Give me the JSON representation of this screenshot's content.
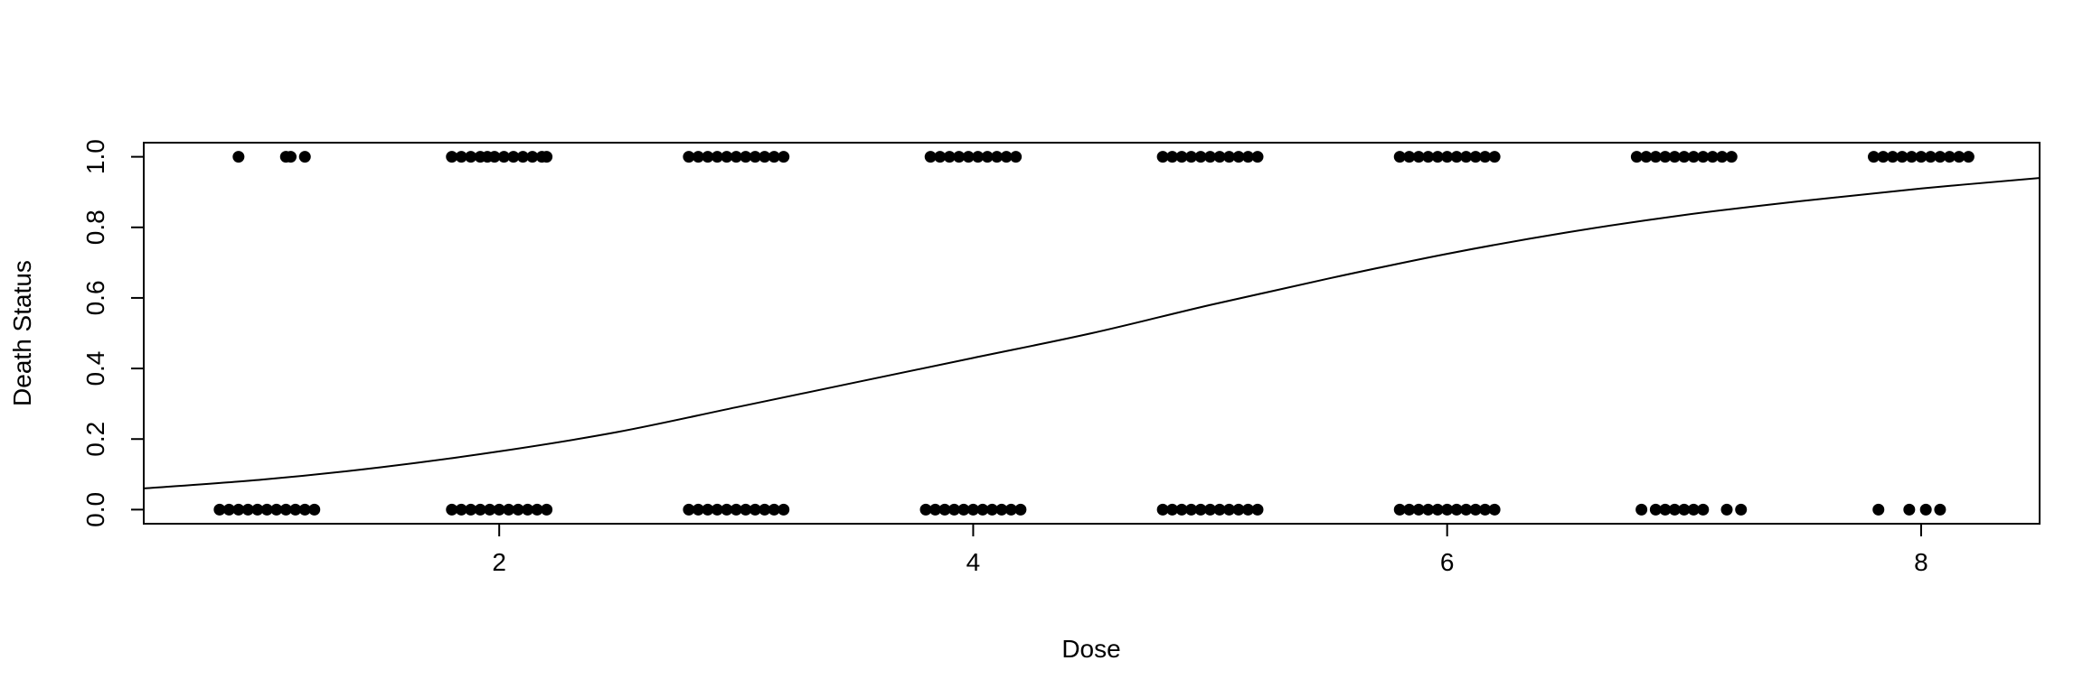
{
  "chart_data": {
    "type": "scatter",
    "title": "",
    "xlabel": "Dose",
    "ylabel": "Death Status",
    "xlim": [
      0.5,
      8.5
    ],
    "ylim": [
      -0.04,
      1.04
    ],
    "x_ticks": [
      2,
      4,
      6,
      8
    ],
    "y_ticks": [
      0.0,
      0.2,
      0.4,
      0.6,
      0.8,
      1.0
    ],
    "x_tick_labels": [
      "2",
      "4",
      "6",
      "8"
    ],
    "y_tick_labels": [
      "0.0",
      "0.2",
      "0.4",
      "0.6",
      "0.8",
      "1.0"
    ],
    "grid": false,
    "series": [
      {
        "type": "scatter",
        "color": "#000000",
        "x": [
          0.9,
          1.1,
          1.12,
          1.18,
          1.8,
          1.84,
          1.88,
          1.92,
          1.95,
          1.98,
          2.02,
          2.06,
          2.1,
          2.14,
          2.18,
          2.2,
          2.8,
          2.84,
          2.88,
          2.92,
          2.96,
          3.0,
          3.04,
          3.08,
          3.12,
          3.16,
          3.2,
          3.82,
          3.86,
          3.9,
          3.94,
          3.98,
          4.02,
          4.06,
          4.1,
          4.14,
          4.18,
          4.8,
          4.84,
          4.88,
          4.92,
          4.96,
          5.0,
          5.04,
          5.08,
          5.12,
          5.16,
          5.2,
          5.8,
          5.84,
          5.88,
          5.92,
          5.96,
          6.0,
          6.04,
          6.08,
          6.12,
          6.16,
          6.2,
          6.8,
          6.84,
          6.88,
          6.92,
          6.96,
          7.0,
          7.04,
          7.08,
          7.12,
          7.16,
          7.2,
          7.8,
          7.84,
          7.88,
          7.92,
          7.96,
          8.0,
          8.04,
          8.08,
          8.12,
          8.16,
          8.2,
          0.82,
          0.86,
          0.9,
          0.94,
          0.98,
          1.02,
          1.06,
          1.1,
          1.14,
          1.18,
          1.22,
          1.8,
          1.84,
          1.88,
          1.92,
          1.96,
          2.0,
          2.04,
          2.08,
          2.12,
          2.16,
          2.2,
          2.8,
          2.84,
          2.88,
          2.92,
          2.96,
          3.0,
          3.04,
          3.08,
          3.12,
          3.16,
          3.2,
          3.8,
          3.84,
          3.88,
          3.92,
          3.96,
          4.0,
          4.04,
          4.08,
          4.12,
          4.16,
          4.2,
          4.8,
          4.84,
          4.88,
          4.92,
          4.96,
          5.0,
          5.04,
          5.08,
          5.12,
          5.16,
          5.2,
          5.8,
          5.84,
          5.88,
          5.92,
          5.96,
          6.0,
          6.04,
          6.08,
          6.12,
          6.16,
          6.2,
          6.82,
          6.88,
          6.92,
          6.96,
          7.0,
          7.04,
          7.08,
          7.18,
          7.24,
          7.82,
          7.95,
          8.02,
          8.08
        ],
        "y": [
          1,
          1,
          1,
          1,
          1,
          1,
          1,
          1,
          1,
          1,
          1,
          1,
          1,
          1,
          1,
          1,
          1,
          1,
          1,
          1,
          1,
          1,
          1,
          1,
          1,
          1,
          1,
          1,
          1,
          1,
          1,
          1,
          1,
          1,
          1,
          1,
          1,
          1,
          1,
          1,
          1,
          1,
          1,
          1,
          1,
          1,
          1,
          1,
          1,
          1,
          1,
          1,
          1,
          1,
          1,
          1,
          1,
          1,
          1,
          1,
          1,
          1,
          1,
          1,
          1,
          1,
          1,
          1,
          1,
          1,
          1,
          1,
          1,
          1,
          1,
          1,
          1,
          1,
          1,
          1,
          1,
          0,
          0,
          0,
          0,
          0,
          0,
          0,
          0,
          0,
          0,
          0,
          0,
          0,
          0,
          0,
          0,
          0,
          0,
          0,
          0,
          0,
          0,
          0,
          0,
          0,
          0,
          0,
          0,
          0,
          0,
          0,
          0,
          0,
          0,
          0,
          0,
          0,
          0,
          0,
          0,
          0,
          0,
          0,
          0,
          0,
          0,
          0,
          0,
          0,
          0,
          0,
          0,
          0,
          0,
          0,
          0,
          0,
          0,
          0,
          0,
          0,
          0,
          0,
          0,
          0,
          0,
          0,
          0,
          0,
          0,
          0,
          0,
          0,
          0,
          0,
          0,
          0,
          0,
          0
        ]
      },
      {
        "type": "line",
        "color": "#000000",
        "x": [
          0.5,
          1.0,
          1.5,
          2.0,
          2.5,
          3.0,
          3.5,
          4.0,
          4.5,
          5.0,
          5.5,
          6.0,
          6.5,
          7.0,
          7.5,
          8.0,
          8.5
        ],
        "y": [
          0.06,
          0.085,
          0.12,
          0.165,
          0.22,
          0.29,
          0.36,
          0.43,
          0.5,
          0.58,
          0.655,
          0.725,
          0.785,
          0.835,
          0.875,
          0.91,
          0.94
        ]
      }
    ]
  }
}
